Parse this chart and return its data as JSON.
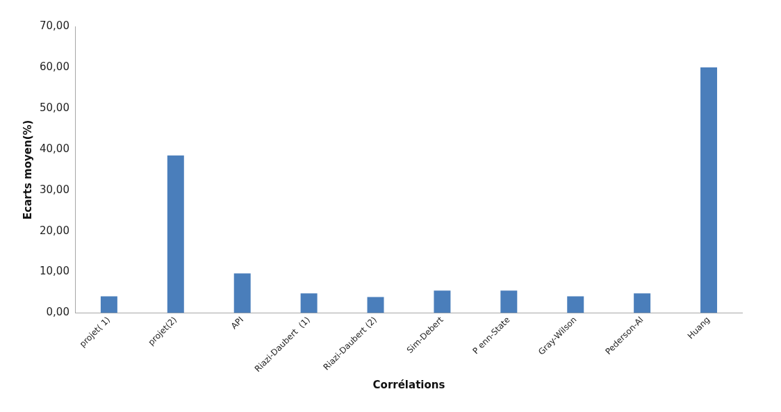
{
  "chart_data": {
    "type": "bar",
    "xlabel": "Corrélations",
    "ylabel": "Ecarts moyen(%)",
    "categories": [
      "projet( 1)",
      "projet(2)",
      "API",
      "Riazi-Daubert  (1)",
      "Riazi-Daubert (2)",
      "Sim-Debert",
      "P enn-State",
      "Gray-Wilson",
      "Pederson-Al",
      "Huang"
    ],
    "series": [
      {
        "color": "#4a7ebb",
        "values": [
          4.1,
          38.5,
          9.7,
          4.8,
          3.9,
          5.5,
          5.5,
          4.1,
          4.8,
          60.0
        ]
      }
    ],
    "ylim": [
      0,
      70
    ],
    "yticks": [
      {
        "value": 0,
        "label": "0,00"
      },
      {
        "value": 10,
        "label": "10,00"
      },
      {
        "value": 20,
        "label": "20,00"
      },
      {
        "value": 30,
        "label": "30,00"
      },
      {
        "value": 40,
        "label": "40,00"
      },
      {
        "value": 50,
        "label": "50,00"
      },
      {
        "value": 60,
        "label": "60,00"
      },
      {
        "value": 70,
        "label": "70,00"
      }
    ],
    "grid": false,
    "legend": false
  }
}
